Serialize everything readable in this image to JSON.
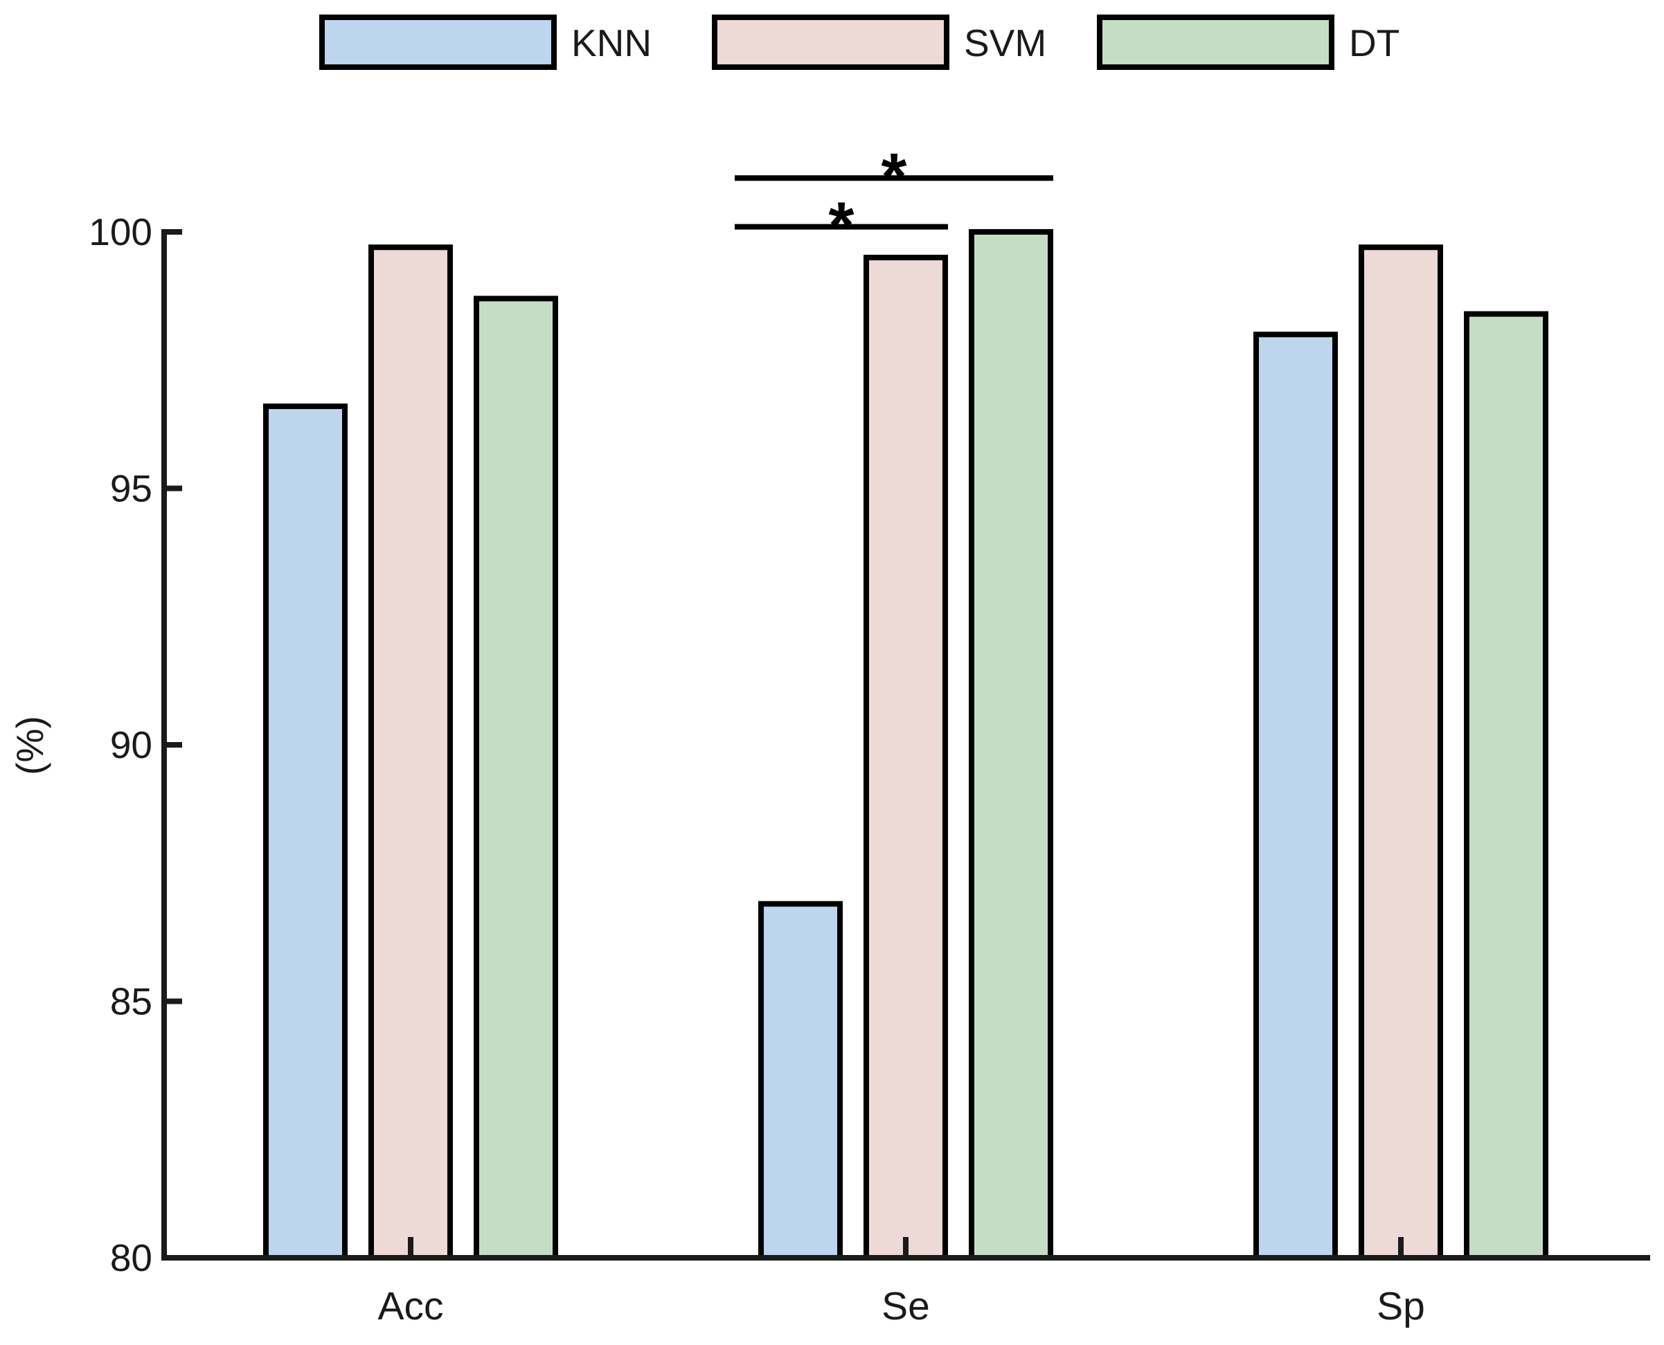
{
  "chart_data": {
    "type": "bar",
    "title": "",
    "categories": [
      "Acc",
      "Se",
      "Sp"
    ],
    "series": [
      {
        "name": "KNN",
        "color": "#BDD5EE",
        "values": [
          96.6,
          86.9,
          98.0
        ]
      },
      {
        "name": "SVM",
        "color": "#EDD9D6",
        "values": [
          99.7,
          99.5,
          99.7
        ]
      },
      {
        "name": "DT",
        "color": "#C6DDC5",
        "values": [
          98.7,
          100.0,
          98.4
        ]
      }
    ],
    "xlabel": "",
    "ylabel": "(%)",
    "ylim": [
      80,
      100
    ],
    "yticks": [
      80,
      85,
      90,
      95,
      100
    ],
    "grid": "off",
    "legend_position": "top",
    "bar_edge_color": "#000000",
    "axis_color": "#1a1a1a",
    "annotation_color": "#000000",
    "annotations": [
      {
        "symbol": "*",
        "category": "Se",
        "from_series": "KNN",
        "to_series": "SVM",
        "y_pct": 100.1
      },
      {
        "symbol": "*",
        "category": "Se",
        "from_series": "KNN",
        "to_series": "DT",
        "y_pct": 101.05
      }
    ]
  }
}
